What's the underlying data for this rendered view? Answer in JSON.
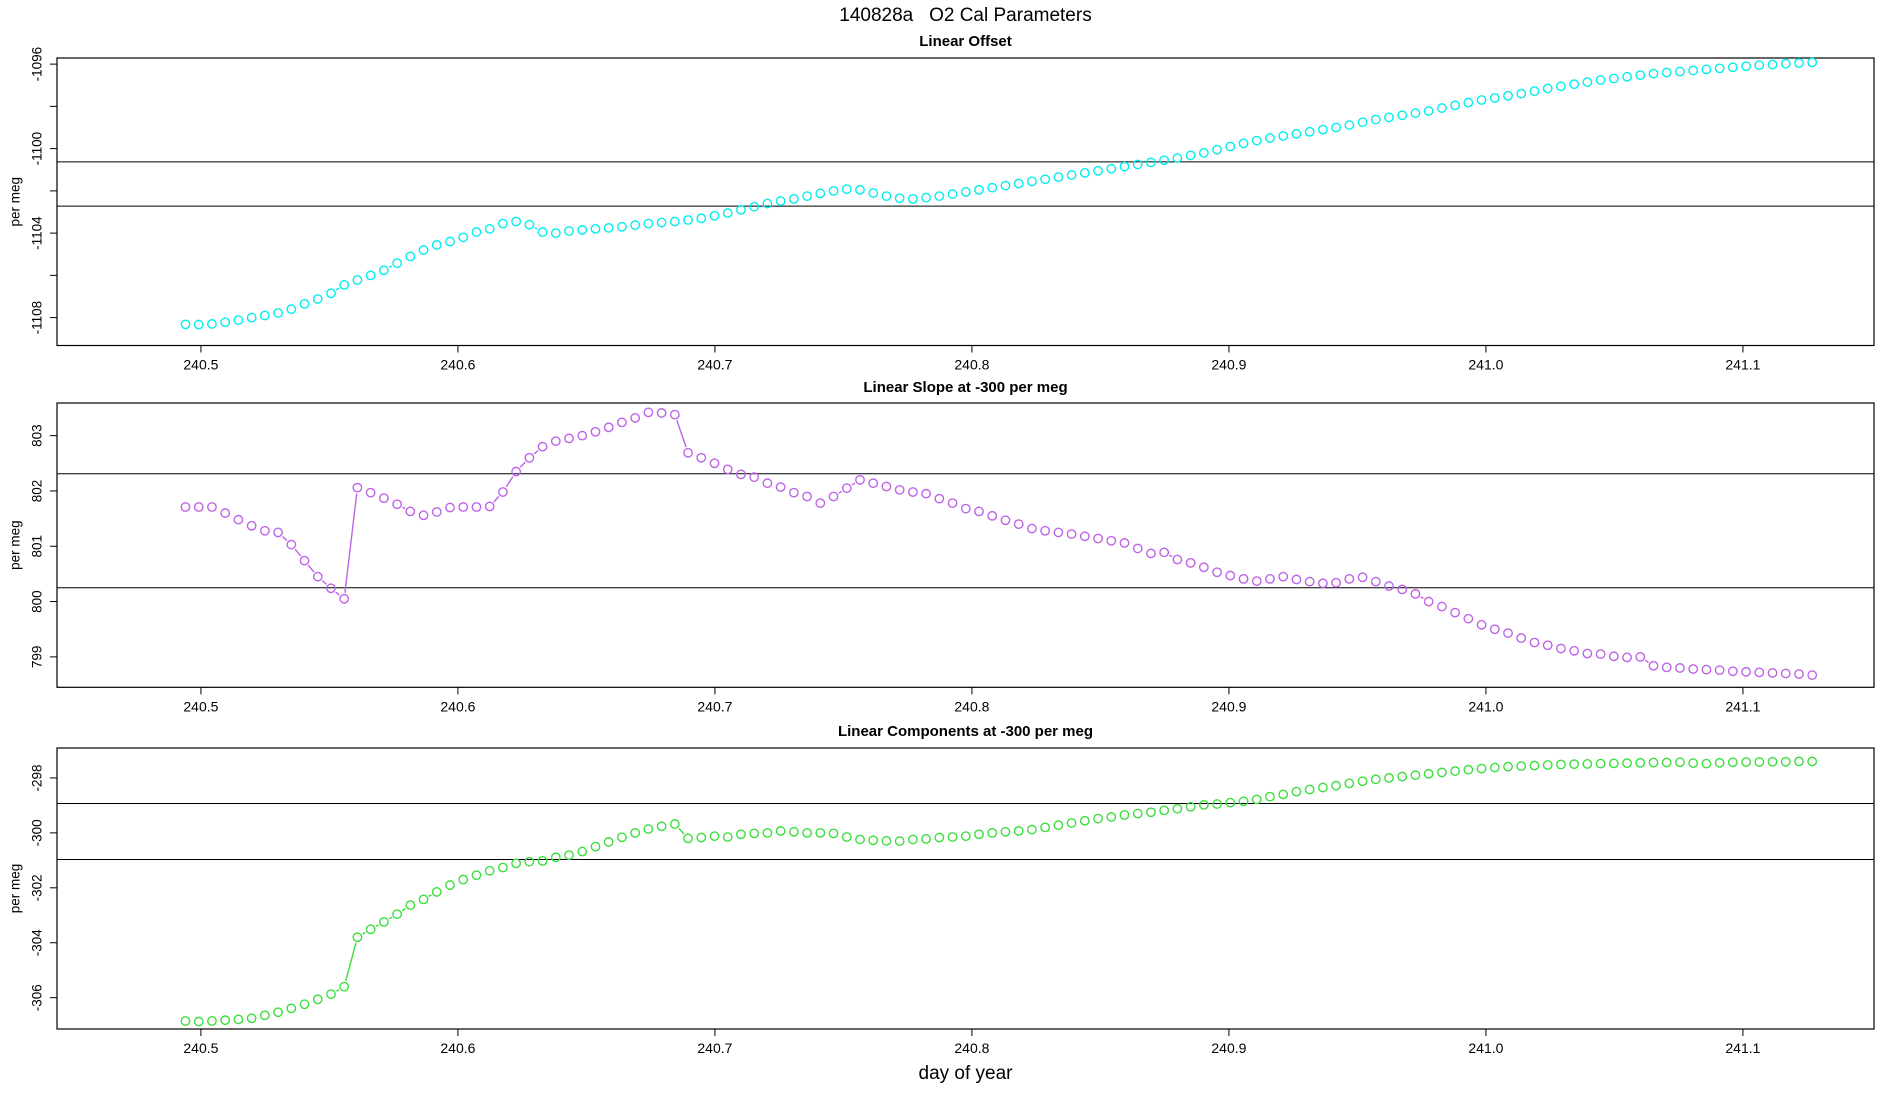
{
  "figure_title": "140828a   O2 Cal Parameters",
  "x_axis_label": "day of year",
  "background_color": "#ffffff",
  "axis_color": "#000000",
  "chart_data": [
    {
      "type": "scatter",
      "title": "Linear Offset",
      "ylabel": "per meg",
      "marker": "open-circle",
      "color": "#00EEEE",
      "xlim": [
        240.444,
        241.151
      ],
      "ylim": [
        -1109.32,
        -1095.71
      ],
      "x_ticks": [
        240.5,
        240.6,
        240.7,
        240.8,
        240.9,
        241.0,
        241.1
      ],
      "x_tick_labels": [
        "240.5",
        "240.6",
        "240.7",
        "240.8",
        "240.9",
        "241.0",
        "241.1"
      ],
      "y_ticks": [
        -1096,
        -1098,
        -1100,
        -1102,
        -1104,
        -1106,
        -1108
      ],
      "y_tick_labels": [
        "-1096",
        "",
        "-1100",
        "",
        "-1104",
        "",
        "-1108"
      ],
      "reference_lines": [
        -1100.63,
        -1102.72
      ],
      "x_start": 240.494,
      "x_step": 0.005146,
      "n_points": 124,
      "y": [
        -1108.32,
        -1108.33,
        -1108.3,
        -1108.22,
        -1108.12,
        -1108.0,
        -1107.9,
        -1107.78,
        -1107.6,
        -1107.35,
        -1107.12,
        -1106.85,
        -1106.45,
        -1106.22,
        -1106.0,
        -1105.76,
        -1105.42,
        -1105.1,
        -1104.8,
        -1104.56,
        -1104.4,
        -1104.2,
        -1103.95,
        -1103.8,
        -1103.55,
        -1103.45,
        -1103.6,
        -1103.95,
        -1104.0,
        -1103.9,
        -1103.85,
        -1103.8,
        -1103.75,
        -1103.7,
        -1103.62,
        -1103.55,
        -1103.5,
        -1103.45,
        -1103.38,
        -1103.3,
        -1103.18,
        -1103.05,
        -1102.9,
        -1102.75,
        -1102.6,
        -1102.48,
        -1102.38,
        -1102.25,
        -1102.12,
        -1102.0,
        -1101.92,
        -1101.95,
        -1102.1,
        -1102.25,
        -1102.35,
        -1102.38,
        -1102.32,
        -1102.25,
        -1102.15,
        -1102.05,
        -1101.95,
        -1101.85,
        -1101.75,
        -1101.65,
        -1101.55,
        -1101.45,
        -1101.35,
        -1101.25,
        -1101.15,
        -1101.05,
        -1100.95,
        -1100.85,
        -1100.75,
        -1100.65,
        -1100.55,
        -1100.45,
        -1100.32,
        -1100.2,
        -1100.05,
        -1099.9,
        -1099.75,
        -1099.62,
        -1099.5,
        -1099.4,
        -1099.3,
        -1099.2,
        -1099.1,
        -1099.0,
        -1098.88,
        -1098.75,
        -1098.62,
        -1098.52,
        -1098.42,
        -1098.32,
        -1098.22,
        -1098.08,
        -1097.95,
        -1097.82,
        -1097.7,
        -1097.6,
        -1097.5,
        -1097.4,
        -1097.28,
        -1097.15,
        -1097.05,
        -1096.95,
        -1096.85,
        -1096.75,
        -1096.68,
        -1096.6,
        -1096.52,
        -1096.45,
        -1096.4,
        -1096.35,
        -1096.3,
        -1096.25,
        -1096.2,
        -1096.15,
        -1096.1,
        -1096.05,
        -1096.02,
        -1095.98,
        -1095.95,
        -1095.92
      ]
    },
    {
      "type": "scatter",
      "title": "Linear Slope at -300 per meg",
      "ylabel": "per meg",
      "marker": "open-circle",
      "color": "#BE63E8",
      "xlim": [
        240.444,
        241.151
      ],
      "ylim": [
        798.45,
        803.59
      ],
      "x_ticks": [
        240.5,
        240.6,
        240.7,
        240.8,
        240.9,
        241.0,
        241.1
      ],
      "x_tick_labels": [
        "240.5",
        "240.6",
        "240.7",
        "240.8",
        "240.9",
        "241.0",
        "241.1"
      ],
      "y_ticks": [
        799,
        800,
        801,
        802,
        803
      ],
      "y_tick_labels": [
        "799",
        "800",
        "801",
        "802",
        "803"
      ],
      "reference_lines": [
        802.31,
        800.25
      ],
      "x_start": 240.494,
      "x_step": 0.005146,
      "n_points": 124,
      "y": [
        801.71,
        801.71,
        801.71,
        801.6,
        801.48,
        801.37,
        801.28,
        801.25,
        801.03,
        800.74,
        800.45,
        800.24,
        800.05,
        802.06,
        801.97,
        801.87,
        801.76,
        801.63,
        801.56,
        801.62,
        801.7,
        801.71,
        801.71,
        801.72,
        801.98,
        802.35,
        802.6,
        802.8,
        802.9,
        802.95,
        803.0,
        803.07,
        803.15,
        803.24,
        803.32,
        803.42,
        803.41,
        803.38,
        802.69,
        802.6,
        802.5,
        802.39,
        802.3,
        802.25,
        802.14,
        802.07,
        801.97,
        801.9,
        801.78,
        801.9,
        802.05,
        802.2,
        802.14,
        802.08,
        802.02,
        801.98,
        801.95,
        801.86,
        801.78,
        801.68,
        801.63,
        801.55,
        801.47,
        801.4,
        801.32,
        801.28,
        801.25,
        801.22,
        801.18,
        801.14,
        801.1,
        801.06,
        800.96,
        800.87,
        800.89,
        800.76,
        800.7,
        800.62,
        800.53,
        800.47,
        800.41,
        800.37,
        800.41,
        800.45,
        800.4,
        800.36,
        800.33,
        800.34,
        800.41,
        800.44,
        800.36,
        800.28,
        800.22,
        800.14,
        800.0,
        799.91,
        799.8,
        799.69,
        799.58,
        799.5,
        799.43,
        799.34,
        799.26,
        799.21,
        799.15,
        799.11,
        799.06,
        799.05,
        799.01,
        798.99,
        799.0,
        798.84,
        798.81,
        798.8,
        798.78,
        798.77,
        798.76,
        798.74,
        798.73,
        798.72,
        798.71,
        798.7,
        798.69,
        798.67
      ]
    },
    {
      "type": "scatter",
      "title": "Linear Components at -300 per meg",
      "ylabel": "per meg",
      "marker": "open-circle",
      "color": "#3CDE3C",
      "xlim": [
        240.444,
        241.151
      ],
      "ylim": [
        -307.14,
        -296.91
      ],
      "x_ticks": [
        240.5,
        240.6,
        240.7,
        240.8,
        240.9,
        241.0,
        241.1
      ],
      "x_tick_labels": [
        "240.5",
        "240.6",
        "240.7",
        "240.8",
        "240.9",
        "241.0",
        "241.1"
      ],
      "y_ticks": [
        -298,
        -300,
        -302,
        -304,
        -306
      ],
      "y_tick_labels": [
        "-298",
        "-300",
        "-302",
        "-304",
        "-306"
      ],
      "reference_lines": [
        -298.93,
        -300.97
      ],
      "x_start": 240.494,
      "x_step": 0.005146,
      "n_points": 124,
      "y": [
        -306.85,
        -306.87,
        -306.85,
        -306.82,
        -306.79,
        -306.75,
        -306.64,
        -306.53,
        -306.39,
        -306.24,
        -306.06,
        -305.87,
        -305.6,
        -303.8,
        -303.51,
        -303.24,
        -302.96,
        -302.63,
        -302.42,
        -302.15,
        -301.9,
        -301.7,
        -301.54,
        -301.38,
        -301.26,
        -301.11,
        -301.05,
        -301.02,
        -300.89,
        -300.81,
        -300.68,
        -300.5,
        -300.33,
        -300.16,
        -300.0,
        -299.86,
        -299.76,
        -299.68,
        -300.2,
        -300.17,
        -300.12,
        -300.15,
        -300.05,
        -300.02,
        -300.0,
        -299.93,
        -299.96,
        -300.0,
        -300.0,
        -300.02,
        -300.15,
        -300.24,
        -300.27,
        -300.29,
        -300.3,
        -300.24,
        -300.22,
        -300.17,
        -300.15,
        -300.12,
        -300.05,
        -300.0,
        -299.96,
        -299.93,
        -299.88,
        -299.8,
        -299.72,
        -299.64,
        -299.56,
        -299.48,
        -299.42,
        -299.35,
        -299.3,
        -299.25,
        -299.18,
        -299.12,
        -299.05,
        -298.98,
        -298.95,
        -298.9,
        -298.85,
        -298.78,
        -298.68,
        -298.6,
        -298.5,
        -298.42,
        -298.35,
        -298.28,
        -298.2,
        -298.12,
        -298.05,
        -298.0,
        -297.95,
        -297.9,
        -297.85,
        -297.8,
        -297.75,
        -297.7,
        -297.66,
        -297.62,
        -297.59,
        -297.57,
        -297.55,
        -297.53,
        -297.51,
        -297.5,
        -297.49,
        -297.48,
        -297.47,
        -297.46,
        -297.45,
        -297.44,
        -297.44,
        -297.43,
        -297.46,
        -297.48,
        -297.45,
        -297.43,
        -297.42,
        -297.42,
        -297.41,
        -297.41,
        -297.4,
        -297.4
      ]
    }
  ]
}
